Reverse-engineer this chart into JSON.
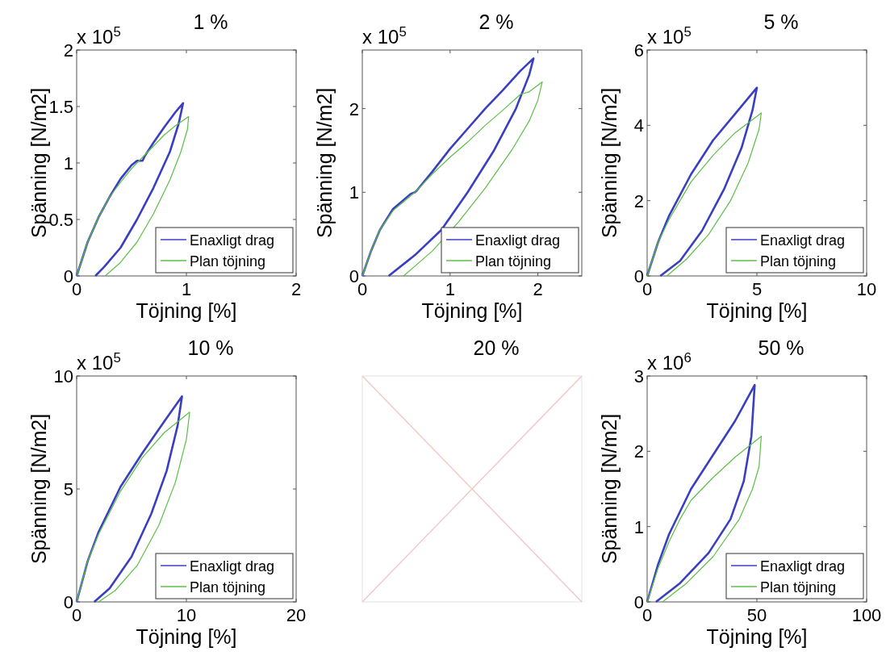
{
  "chart_data": [
    {
      "type": "line",
      "title": "1 %",
      "xlabel": "Töjning [%]",
      "ylabel": "Spänning [N/m2]",
      "annotations": [
        "x 10$^{5}$"
      ],
      "xlim": [
        0,
        2
      ],
      "xticks": [
        0,
        1,
        2
      ],
      "ylim": [
        0,
        2
      ],
      "yticks": [
        0,
        0.5,
        1,
        1.5,
        2
      ],
      "legend": "bottom right",
      "series": [
        {
          "name": "Enaxligt drag",
          "color": "#3a3fc0",
          "x": [
            0,
            0.1,
            0.2,
            0.3,
            0.4,
            0.5,
            0.55,
            0.6,
            0.62,
            0.7,
            0.8,
            0.9,
            0.97,
            0.93,
            0.85,
            0.7,
            0.55,
            0.4,
            0.25,
            0.17
          ],
          "values": [
            0,
            0.3,
            0.52,
            0.7,
            0.86,
            0.98,
            1.02,
            1.02,
            1.06,
            1.18,
            1.32,
            1.45,
            1.53,
            1.35,
            1.1,
            0.78,
            0.5,
            0.25,
            0.08,
            0
          ]
        },
        {
          "name": "Plan töjning",
          "color": "#5cbf48",
          "x": [
            0,
            0.1,
            0.2,
            0.3,
            0.4,
            0.5,
            0.6,
            0.7,
            0.8,
            0.9,
            1.02,
            1.01,
            0.95,
            0.85,
            0.7,
            0.55,
            0.4,
            0.26
          ],
          "values": [
            0,
            0.3,
            0.52,
            0.7,
            0.83,
            0.95,
            1.05,
            1.15,
            1.25,
            1.33,
            1.41,
            1.3,
            1.1,
            0.85,
            0.55,
            0.3,
            0.12,
            0
          ]
        }
      ]
    },
    {
      "type": "line",
      "title": "2 %",
      "xlabel": "Töjning [%]",
      "ylabel": "Spänning [N/m2]",
      "annotations": [
        "x 10$^{5}$"
      ],
      "xlim": [
        0,
        2.5
      ],
      "xticks": [
        0,
        1,
        2
      ],
      "ylim": [
        0,
        2.7
      ],
      "yticks": [
        0,
        1,
        2
      ],
      "legend": "bottom right",
      "series": [
        {
          "name": "Enaxligt drag",
          "color": "#3a3fc0",
          "x": [
            0,
            0.1,
            0.2,
            0.35,
            0.55,
            0.6,
            0.62,
            0.8,
            1.0,
            1.2,
            1.4,
            1.6,
            1.8,
            1.95,
            1.9,
            1.75,
            1.5,
            1.2,
            0.9,
            0.6,
            0.3
          ],
          "values": [
            0,
            0.3,
            0.55,
            0.8,
            0.98,
            1.0,
            1.02,
            1.25,
            1.52,
            1.76,
            2.0,
            2.22,
            2.45,
            2.6,
            2.4,
            2.0,
            1.5,
            1.0,
            0.55,
            0.25,
            0
          ]
        },
        {
          "name": "Plan töjning",
          "color": "#5cbf48",
          "x": [
            0,
            0.1,
            0.2,
            0.35,
            0.6,
            0.8,
            1.0,
            1.2,
            1.4,
            1.6,
            1.8,
            1.9,
            2.05,
            2.0,
            1.9,
            1.7,
            1.4,
            1.1,
            0.8,
            0.47
          ],
          "values": [
            0,
            0.3,
            0.55,
            0.78,
            1.0,
            1.22,
            1.42,
            1.6,
            1.8,
            1.98,
            2.17,
            2.2,
            2.32,
            2.1,
            1.85,
            1.5,
            1.05,
            0.65,
            0.3,
            0
          ]
        }
      ]
    },
    {
      "type": "line",
      "title": "5 %",
      "xlabel": "Töjning [%]",
      "ylabel": "Spänning [N/m2]",
      "annotations": [
        "x 10$^{5}$"
      ],
      "xlim": [
        0,
        10
      ],
      "xticks": [
        0,
        5,
        10
      ],
      "ylim": [
        0,
        6
      ],
      "yticks": [
        0,
        2,
        4,
        6
      ],
      "legend": "bottom right",
      "series": [
        {
          "name": "Enaxligt drag",
          "color": "#3a3fc0",
          "x": [
            0,
            0.5,
            1,
            2,
            3,
            4,
            5,
            4.8,
            4.3,
            3.5,
            2.5,
            1.5,
            0.6
          ],
          "values": [
            0,
            0.9,
            1.6,
            2.7,
            3.6,
            4.3,
            5.0,
            4.4,
            3.4,
            2.3,
            1.2,
            0.4,
            0
          ]
        },
        {
          "name": "Plan töjning",
          "color": "#5cbf48",
          "x": [
            0,
            0.5,
            1,
            2,
            3,
            4,
            5.2,
            5.1,
            4.6,
            3.8,
            2.8,
            1.8,
            0.9
          ],
          "values": [
            0,
            0.9,
            1.5,
            2.5,
            3.2,
            3.8,
            4.33,
            3.9,
            3.0,
            2.0,
            1.1,
            0.45,
            0
          ]
        }
      ]
    },
    {
      "type": "line",
      "title": "10 %",
      "xlabel": "Töjning [%]",
      "ylabel": "Spänning [N/m2]",
      "annotations": [
        "x 10$^{5}$"
      ],
      "xlim": [
        0,
        20
      ],
      "xticks": [
        0,
        10,
        20
      ],
      "ylim": [
        0,
        10
      ],
      "yticks": [
        0,
        5,
        10
      ],
      "legend": "bottom right",
      "series": [
        {
          "name": "Enaxligt drag",
          "color": "#3a3fc0",
          "x": [
            0,
            1,
            2,
            4,
            6,
            8,
            9.6,
            9.2,
            8.2,
            6.8,
            5,
            3,
            1.6
          ],
          "values": [
            0,
            1.8,
            3.1,
            5.1,
            6.6,
            8.0,
            9.1,
            7.8,
            5.8,
            3.9,
            2.0,
            0.6,
            0
          ]
        },
        {
          "name": "Plan töjning",
          "color": "#5cbf48",
          "x": [
            0,
            1,
            2,
            4,
            6,
            8,
            10.3,
            10,
            9,
            7.5,
            5.5,
            3.5,
            2
          ],
          "values": [
            0,
            1.8,
            3.0,
            4.9,
            6.4,
            7.5,
            8.4,
            7.2,
            5.3,
            3.4,
            1.6,
            0.5,
            0
          ]
        }
      ]
    },
    {
      "type": "other",
      "title": "20 %"
    },
    {
      "type": "line",
      "title": "50 %",
      "xlabel": "Töjning [%]",
      "ylabel": "Spänning [N/m2]",
      "annotations": [
        "x 10$^{6}$"
      ],
      "xlim": [
        0,
        100
      ],
      "xticks": [
        0,
        50,
        100
      ],
      "ylim": [
        0,
        3
      ],
      "yticks": [
        0,
        1,
        2,
        3
      ],
      "legend": "bottom right",
      "series": [
        {
          "name": "Enaxligt drag",
          "color": "#3a3fc0",
          "x": [
            0,
            5,
            10,
            15,
            20,
            30,
            40,
            49,
            47.5,
            44,
            38,
            28,
            15,
            4
          ],
          "values": [
            0,
            0.5,
            0.9,
            1.2,
            1.5,
            1.95,
            2.4,
            2.88,
            2.2,
            1.6,
            1.1,
            0.65,
            0.25,
            0
          ]
        },
        {
          "name": "Plan töjning",
          "color": "#5cbf48",
          "x": [
            0,
            5,
            10,
            15,
            20,
            30,
            40,
            52,
            51,
            48,
            42,
            30,
            18,
            7
          ],
          "values": [
            0,
            0.45,
            0.8,
            1.1,
            1.35,
            1.65,
            1.92,
            2.2,
            1.8,
            1.5,
            1.1,
            0.6,
            0.25,
            0
          ]
        }
      ]
    }
  ]
}
